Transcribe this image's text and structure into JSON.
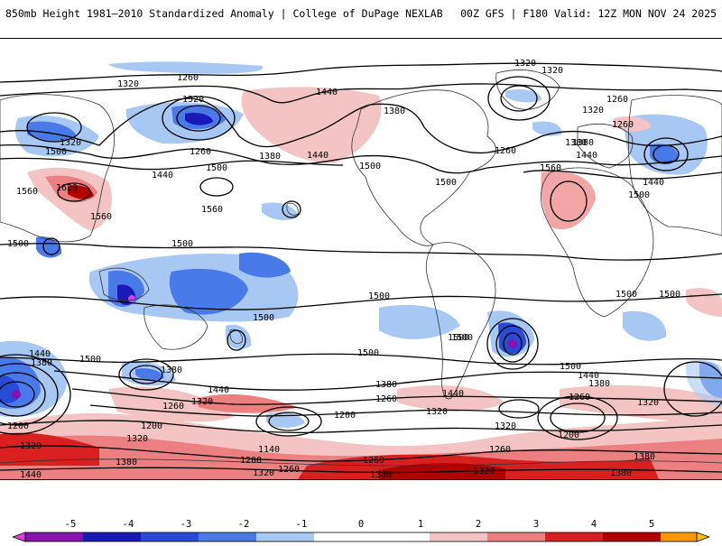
{
  "header": {
    "title": "850mb Height 1981–2010 Standardized Anomaly | College of DuPage NEXLAB",
    "run_info": "00Z GFS | F180 Valid: 12Z MON NOV 24 2025"
  },
  "colorbar": {
    "ticks": [
      "-5",
      "-4",
      "-3",
      "-2",
      "-1",
      "0",
      "1",
      "2",
      "3",
      "4",
      "5"
    ],
    "colors": [
      "#e040e0",
      "#8a10b0",
      "#1a1ab8",
      "#2a4ad8",
      "#4a7ae8",
      "#a8c8f4",
      "#ffffff",
      "#f4c4c4",
      "#ec8080",
      "#d82020",
      "#b00000",
      "#ff9800",
      "#ffc000"
    ]
  },
  "contour_labels": [
    {
      "text": "1260"
    },
    {
      "text": "1320"
    },
    {
      "text": "1320"
    },
    {
      "text": "1440"
    },
    {
      "text": "1380"
    },
    {
      "text": "1320"
    },
    {
      "text": "1260"
    },
    {
      "text": "1320"
    },
    {
      "text": "1500"
    },
    {
      "text": "1260"
    },
    {
      "text": "1380"
    },
    {
      "text": "1440"
    },
    {
      "text": "1500"
    },
    {
      "text": "1440"
    },
    {
      "text": "1500"
    },
    {
      "text": "1560"
    },
    {
      "text": "1620"
    },
    {
      "text": "1560"
    },
    {
      "text": "1560"
    },
    {
      "text": "1500"
    },
    {
      "text": "1500"
    },
    {
      "text": "1500"
    },
    {
      "text": "1260"
    },
    {
      "text": "1380"
    },
    {
      "text": "1320"
    },
    {
      "text": "1260"
    },
    {
      "text": "1320"
    },
    {
      "text": "1380"
    },
    {
      "text": "1440"
    },
    {
      "text": "1560"
    },
    {
      "text": "1500"
    },
    {
      "text": "1440"
    },
    {
      "text": "1500"
    },
    {
      "text": "1500"
    },
    {
      "text": "1500"
    },
    {
      "text": "1500"
    },
    {
      "text": "1500"
    },
    {
      "text": "1500"
    },
    {
      "text": "1440"
    },
    {
      "text": "1380"
    },
    {
      "text": "1500"
    },
    {
      "text": "1380"
    },
    {
      "text": "1440"
    },
    {
      "text": "1320"
    },
    {
      "text": "1260"
    },
    {
      "text": "1500"
    },
    {
      "text": "1500"
    },
    {
      "text": "1440"
    },
    {
      "text": "1380"
    },
    {
      "text": "1320"
    },
    {
      "text": "1260"
    },
    {
      "text": "1200"
    },
    {
      "text": "1320"
    },
    {
      "text": "1260"
    },
    {
      "text": "1440"
    },
    {
      "text": "1380"
    },
    {
      "text": "1320"
    },
    {
      "text": "1260"
    },
    {
      "text": "1200"
    },
    {
      "text": "1320"
    },
    {
      "text": "1200"
    },
    {
      "text": "1320"
    },
    {
      "text": "1380"
    },
    {
      "text": "1140"
    },
    {
      "text": "1200"
    },
    {
      "text": "1260"
    },
    {
      "text": "1320"
    },
    {
      "text": "1200"
    },
    {
      "text": "1260"
    },
    {
      "text": "1320"
    },
    {
      "text": "1380"
    },
    {
      "text": "1380"
    },
    {
      "text": "1440"
    },
    {
      "text": "1380"
    }
  ]
}
